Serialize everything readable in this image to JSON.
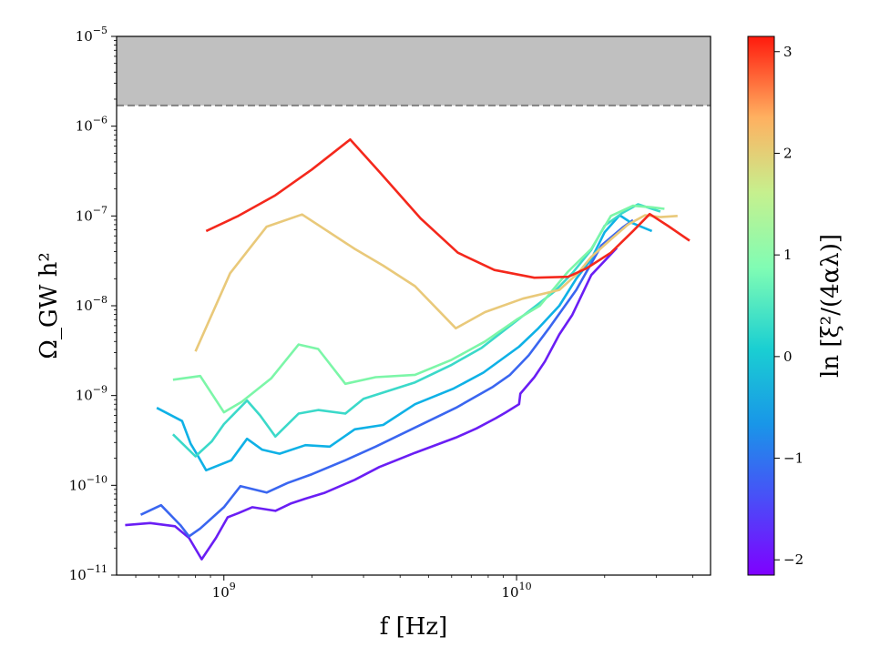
{
  "chart_data": {
    "type": "line",
    "xlabel": "f [Hz]",
    "ylabel": "Ω_GW h²",
    "xscale": "log",
    "yscale": "log",
    "xlim": [
      430000000,
      46000000000
    ],
    "ylim": [
      1e-11,
      1e-05
    ],
    "x_ticks": [
      {
        "value": 1000000000,
        "base": "10",
        "exp": "9"
      },
      {
        "value": 10000000000,
        "base": "10",
        "exp": "10"
      }
    ],
    "y_ticks": [
      {
        "value": 1e-11,
        "base": "10",
        "exp": "−11"
      },
      {
        "value": 1e-10,
        "base": "10",
        "exp": "−10"
      },
      {
        "value": 1e-09,
        "base": "10",
        "exp": "−9"
      },
      {
        "value": 1e-08,
        "base": "10",
        "exp": "−8"
      },
      {
        "value": 1e-07,
        "base": "10",
        "exp": "−7"
      },
      {
        "value": 1e-06,
        "base": "10",
        "exp": "−6"
      },
      {
        "value": 1e-05,
        "base": "10",
        "exp": "−5"
      }
    ],
    "excluded_region": {
      "from": 1.7e-06,
      "to": 1e-05,
      "color": "#c0c0c0",
      "edge_color": "#808080",
      "edge_style": "dashed"
    },
    "colorbar": {
      "label": "ln [ξ²/(4αλ)]",
      "range": [
        -2.15,
        3.15
      ],
      "ticks": [
        {
          "value": -2,
          "label": "−2"
        },
        {
          "value": -1,
          "label": "−1"
        },
        {
          "value": 0,
          "label": "0"
        },
        {
          "value": 1,
          "label": "1"
        },
        {
          "value": 2,
          "label": "2"
        },
        {
          "value": 3,
          "label": "3"
        }
      ],
      "colormap": "rainbow"
    },
    "grid": false,
    "series": [
      {
        "color": "#6a1ef4",
        "points": [
          [
            460000000.0,
            3.6e-11
          ],
          [
            560000000.0,
            3.8e-11
          ],
          [
            680000000.0,
            3.5e-11
          ],
          [
            760000000.0,
            2.6e-11
          ],
          [
            840000000.0,
            1.5e-11
          ],
          [
            940000000.0,
            2.6e-11
          ],
          [
            1030000000.0,
            4.4e-11
          ],
          [
            1120000000.0,
            4.9e-11
          ],
          [
            1250000000.0,
            5.7e-11
          ],
          [
            1500000000.0,
            5.2e-11
          ],
          [
            1700000000.0,
            6.3e-11
          ],
          [
            1900000000.0,
            7.1e-11
          ],
          [
            2200000000.0,
            8.2e-11
          ],
          [
            2800000000.0,
            1.15e-10
          ],
          [
            3400000000.0,
            1.6e-10
          ],
          [
            4500000000.0,
            2.3e-10
          ],
          [
            6200000000.0,
            3.4e-10
          ],
          [
            7300000000.0,
            4.3e-10
          ],
          [
            8500000000.0,
            5.6e-10
          ],
          [
            9200000000.0,
            6.5e-10
          ],
          [
            10200000000.0,
            8e-10
          ],
          [
            10300000000.0,
            1.05e-09
          ],
          [
            11500000000.0,
            1.6e-09
          ],
          [
            12500000000.0,
            2.4e-09
          ],
          [
            14000000000.0,
            4.8e-09
          ],
          [
            15500000000.0,
            7.9e-09
          ],
          [
            18000000000.0,
            2.2e-08
          ],
          [
            22000000000.0,
            4.4e-08
          ]
        ]
      },
      {
        "color": "#3a66f0",
        "points": [
          [
            520000000.0,
            4.7e-11
          ],
          [
            610000000.0,
            6e-11
          ],
          [
            710000000.0,
            3.6e-11
          ],
          [
            760000000.0,
            2.7e-11
          ],
          [
            830000000.0,
            3.3e-11
          ],
          [
            1000000000.0,
            5.7e-11
          ],
          [
            1140000000.0,
            9.8e-11
          ],
          [
            1400000000.0,
            8.3e-11
          ],
          [
            1650000000.0,
            1.06e-10
          ],
          [
            2000000000.0,
            1.33e-10
          ],
          [
            2600000000.0,
            1.9e-10
          ],
          [
            3300000000.0,
            2.7e-10
          ],
          [
            4300000000.0,
            4.1e-10
          ],
          [
            6200000000.0,
            7.3e-10
          ],
          [
            8300000000.0,
            1.25e-09
          ],
          [
            9500000000.0,
            1.7e-09
          ],
          [
            11000000000.0,
            2.8e-09
          ],
          [
            13000000000.0,
            5.8e-09
          ],
          [
            16000000000.0,
            1.5e-08
          ],
          [
            19500000000.0,
            4.7e-08
          ],
          [
            23000000000.0,
            7.4e-08
          ],
          [
            25000000000.0,
            9e-08
          ]
        ]
      },
      {
        "color": "#0fb1e6",
        "points": [
          [
            590000000.0,
            7.3e-10
          ],
          [
            720000000.0,
            5.2e-10
          ],
          [
            770000000.0,
            2.9e-10
          ],
          [
            810000000.0,
            2.2e-10
          ],
          [
            870000000.0,
            1.47e-10
          ],
          [
            1060000000.0,
            1.9e-10
          ],
          [
            1200000000.0,
            3.3e-10
          ],
          [
            1350000000.0,
            2.5e-10
          ],
          [
            1550000000.0,
            2.25e-10
          ],
          [
            1900000000.0,
            2.8e-10
          ],
          [
            2300000000.0,
            2.7e-10
          ],
          [
            2800000000.0,
            4.2e-10
          ],
          [
            3500000000.0,
            4.7e-10
          ],
          [
            4500000000.0,
            8e-10
          ],
          [
            6100000000.0,
            1.2e-09
          ],
          [
            7700000000.0,
            1.8e-09
          ],
          [
            10200000000.0,
            3.5e-09
          ],
          [
            11800000000.0,
            5.5e-09
          ],
          [
            14000000000.0,
            1e-08
          ],
          [
            16000000000.0,
            2e-08
          ],
          [
            18000000000.0,
            3.3e-08
          ],
          [
            20000000000.0,
            6.6e-08
          ],
          [
            22500000000.0,
            1.02e-07
          ],
          [
            24500000000.0,
            8.5e-08
          ],
          [
            29000000000.0,
            6.8e-08
          ]
        ]
      },
      {
        "color": "#3bd9c9",
        "points": [
          [
            670000000.0,
            3.7e-10
          ],
          [
            800000000.0,
            2.1e-10
          ],
          [
            910000000.0,
            3.1e-10
          ],
          [
            1000000000.0,
            4.8e-10
          ],
          [
            1200000000.0,
            8.8e-10
          ],
          [
            1330000000.0,
            6e-10
          ],
          [
            1500000000.0,
            3.5e-10
          ],
          [
            1800000000.0,
            6.3e-10
          ],
          [
            2100000000.0,
            6.9e-10
          ],
          [
            2600000000.0,
            6.3e-10
          ],
          [
            3000000000.0,
            9.2e-10
          ],
          [
            4500000000.0,
            1.4e-09
          ],
          [
            6000000000.0,
            2.2e-09
          ],
          [
            7600000000.0,
            3.4e-09
          ],
          [
            10000000000.0,
            6.8e-09
          ],
          [
            13500000000.0,
            1.45e-08
          ],
          [
            15500000000.0,
            2.3e-08
          ],
          [
            18000000000.0,
            4.2e-08
          ],
          [
            20000000000.0,
            7.8e-08
          ],
          [
            23000000000.0,
            1.08e-07
          ],
          [
            26000000000.0,
            1.35e-07
          ],
          [
            31000000000.0,
            1.12e-07
          ]
        ]
      },
      {
        "color": "#7cf6a8",
        "points": [
          [
            670000000.0,
            1.5e-09
          ],
          [
            830000000.0,
            1.65e-09
          ],
          [
            1000000000.0,
            6.5e-10
          ],
          [
            1150000000.0,
            8.5e-10
          ],
          [
            1450000000.0,
            1.55e-09
          ],
          [
            1800000000.0,
            3.7e-09
          ],
          [
            2100000000.0,
            3.3e-09
          ],
          [
            2600000000.0,
            1.35e-09
          ],
          [
            3300000000.0,
            1.6e-09
          ],
          [
            4500000000.0,
            1.7e-09
          ],
          [
            6000000000.0,
            2.5e-09
          ],
          [
            7800000000.0,
            4e-09
          ],
          [
            10000000000.0,
            7e-09
          ],
          [
            12000000000.0,
            1e-08
          ],
          [
            15000000000.0,
            2.4e-08
          ],
          [
            18000000000.0,
            4.3e-08
          ],
          [
            21000000000.0,
            1e-07
          ],
          [
            25000000000.0,
            1.3e-07
          ],
          [
            29000000000.0,
            1.25e-07
          ],
          [
            32000000000.0,
            1.2e-07
          ]
        ]
      },
      {
        "color": "#e9c97a",
        "points": [
          [
            800000000.0,
            3.1e-09
          ],
          [
            1050000000.0,
            2.3e-08
          ],
          [
            1400000000.0,
            7.6e-08
          ],
          [
            1850000000.0,
            1.04e-07
          ],
          [
            2800000000.0,
            4.3e-08
          ],
          [
            3500000000.0,
            2.8e-08
          ],
          [
            4500000000.0,
            1.65e-08
          ],
          [
            6200000000.0,
            5.6e-09
          ],
          [
            7800000000.0,
            8.5e-09
          ],
          [
            10500000000.0,
            1.2e-08
          ],
          [
            14000000000.0,
            1.5e-08
          ],
          [
            16200000000.0,
            2.3e-08
          ],
          [
            18000000000.0,
            3.5e-08
          ],
          [
            21000000000.0,
            5.5e-08
          ],
          [
            24000000000.0,
            8e-08
          ],
          [
            27500000000.0,
            1.02e-07
          ],
          [
            31000000000.0,
            9.7e-08
          ],
          [
            35500000000.0,
            1e-07
          ]
        ]
      },
      {
        "color": "#f4281c",
        "points": [
          [
            870000000.0,
            6.8e-08
          ],
          [
            1120000000.0,
            1e-07
          ],
          [
            1500000000.0,
            1.7e-07
          ],
          [
            2000000000.0,
            3.3e-07
          ],
          [
            2700000000.0,
            7.1e-07
          ],
          [
            3400000000.0,
            3.1e-07
          ],
          [
            4700000000.0,
            9.4e-08
          ],
          [
            6300000000.0,
            3.9e-08
          ],
          [
            8400000000.0,
            2.5e-08
          ],
          [
            11500000000.0,
            2.05e-08
          ],
          [
            15000000000.0,
            2.1e-08
          ],
          [
            17300000000.0,
            2.6e-08
          ],
          [
            21000000000.0,
            3.9e-08
          ],
          [
            25000000000.0,
            6.8e-08
          ],
          [
            28500000000.0,
            1.05e-07
          ],
          [
            33000000000.0,
            7.7e-08
          ],
          [
            39000000000.0,
            5.3e-08
          ]
        ]
      }
    ]
  }
}
